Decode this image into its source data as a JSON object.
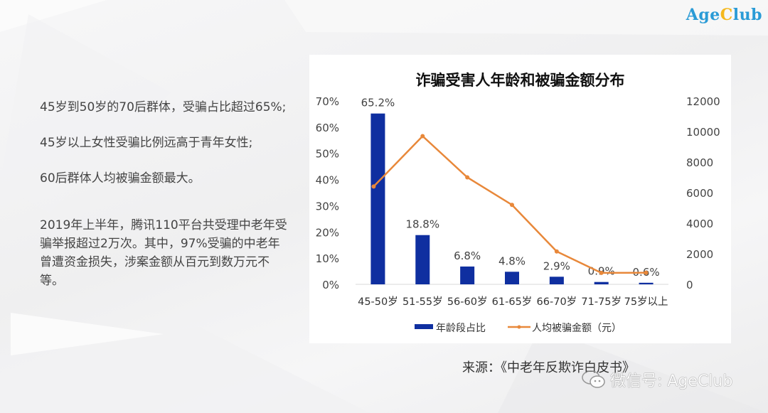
{
  "brand": {
    "prefix": "Age",
    "highlight": "C",
    "suffix": "lub"
  },
  "notes": [
    "45岁到50岁的70后群体，受骗占比超过65%;",
    "45岁以上女性受骗比例远高于青年女性;",
    "60后群体人均被骗金额最大。",
    "2019年上半年，腾讯110平台共受理中老年受骗举报超过2万次。其中，97%受骗的中老年曾遭资金损失，涉案金额从百元到数万元不等。"
  ],
  "source": "来源：《中老年反欺诈白皮书》",
  "watermark": "微信号: AgeClub",
  "colors": {
    "bar": "#0f2fa0",
    "line": "#e8883a",
    "brand_blue": "#2a9bd6",
    "brand_yellow": "#f5b81c"
  },
  "chart_data": {
    "type": "bar+line",
    "title": "诈骗受害人年龄和被骗金额分布",
    "categories": [
      "45-50岁",
      "51-55岁",
      "56-60岁",
      "61-65岁",
      "66-70岁",
      "71-75岁",
      "75岁以上"
    ],
    "series": [
      {
        "name": "年龄段占比",
        "type": "bar",
        "axis": "left",
        "values": [
          65.2,
          18.8,
          6.8,
          4.8,
          2.9,
          0.9,
          0.6
        ],
        "labels": [
          "65.2%",
          "18.8%",
          "6.8%",
          "4.8%",
          "2.9%",
          "0.9%",
          "0.6%"
        ]
      },
      {
        "name": "人均被骗金额（元）",
        "type": "line",
        "axis": "right",
        "values": [
          6400,
          9700,
          7000,
          5200,
          2150,
          750,
          760
        ]
      }
    ],
    "left_axis": {
      "ticks": [
        "0%",
        "10%",
        "20%",
        "30%",
        "40%",
        "50%",
        "60%",
        "70%"
      ],
      "range": [
        0,
        70
      ]
    },
    "right_axis": {
      "ticks": [
        "0",
        "2000",
        "4000",
        "6000",
        "8000",
        "10000",
        "12000"
      ],
      "range": [
        0,
        12000
      ]
    },
    "legend_position": "bottom",
    "grid": false
  }
}
